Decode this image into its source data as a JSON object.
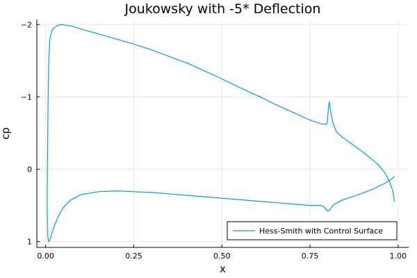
{
  "chart_data": {
    "type": "line",
    "title": "Joukowsky with -5* Deflection",
    "xlabel": "x",
    "ylabel": "cp",
    "xlim": [
      -0.025,
      1.03
    ],
    "ylim": [
      1.08,
      -2.07
    ],
    "y_axis_inverted": true,
    "grid": true,
    "legend_position": "bottom-right",
    "x_ticks": [
      0.0,
      0.25,
      0.5,
      0.75,
      1.0
    ],
    "x_tick_labels": [
      "0.00",
      "0.25",
      "0.50",
      "0.75",
      "1.00"
    ],
    "y_ticks": [
      -2,
      -1,
      0,
      1
    ],
    "y_tick_labels": [
      "−2",
      "−1",
      "0",
      "1"
    ],
    "series": [
      {
        "name": "Hess-Smith with Control Surface",
        "color": "#009AFA",
        "x": [
          0.99,
          0.985,
          0.975,
          0.96,
          0.94,
          0.92,
          0.9,
          0.88,
          0.86,
          0.84,
          0.825,
          0.815,
          0.808,
          0.805,
          0.803,
          0.8,
          0.798,
          0.795,
          0.78,
          0.75,
          0.7,
          0.65,
          0.6,
          0.55,
          0.5,
          0.45,
          0.4,
          0.35,
          0.3,
          0.25,
          0.2,
          0.15,
          0.12,
          0.1,
          0.08,
          0.06,
          0.045,
          0.035,
          0.025,
          0.018,
          0.012,
          0.009,
          0.007,
          0.006,
          0.005,
          0.0045,
          0.005,
          0.006,
          0.008,
          0.01,
          0.013,
          0.018,
          0.025,
          0.035,
          0.05,
          0.07,
          0.1,
          0.15,
          0.2,
          0.25,
          0.3,
          0.35,
          0.4,
          0.45,
          0.5,
          0.55,
          0.6,
          0.65,
          0.7,
          0.75,
          0.78,
          0.79,
          0.795,
          0.8,
          0.805,
          0.81,
          0.82,
          0.84,
          0.87,
          0.9,
          0.93,
          0.96,
          0.98,
          0.99
        ],
        "y": [
          0.45,
          0.3,
          0.16,
          0.03,
          -0.08,
          -0.16,
          -0.24,
          -0.31,
          -0.38,
          -0.45,
          -0.52,
          -0.64,
          -0.82,
          -0.93,
          -0.88,
          -0.7,
          -0.63,
          -0.62,
          -0.63,
          -0.68,
          -0.79,
          -0.9,
          -1.02,
          -1.13,
          -1.25,
          -1.36,
          -1.47,
          -1.56,
          -1.65,
          -1.73,
          -1.8,
          -1.87,
          -1.91,
          -1.94,
          -1.97,
          -1.99,
          -2.0,
          -1.99,
          -1.96,
          -1.92,
          -1.8,
          -1.5,
          -1.0,
          -0.5,
          0.0,
          0.5,
          0.8,
          0.93,
          0.99,
          1.0,
          0.96,
          0.88,
          0.78,
          0.66,
          0.53,
          0.43,
          0.35,
          0.31,
          0.3,
          0.31,
          0.32,
          0.34,
          0.36,
          0.38,
          0.4,
          0.42,
          0.44,
          0.46,
          0.48,
          0.5,
          0.5,
          0.52,
          0.55,
          0.58,
          0.57,
          0.53,
          0.48,
          0.43,
          0.38,
          0.33,
          0.27,
          0.2,
          0.14,
          0.1
        ]
      }
    ]
  }
}
